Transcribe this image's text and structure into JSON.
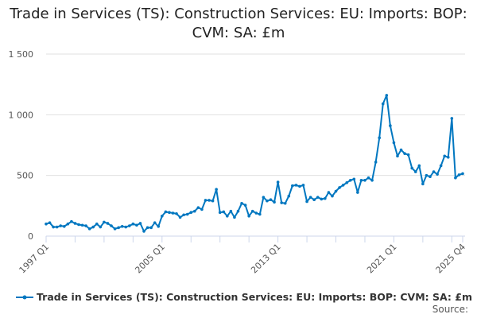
{
  "chart_data": {
    "type": "line",
    "title": "Trade in Services (TS): Construction Services: EU: Imports: BOP: CVM: SA: £m",
    "x_start": "1997 Q1",
    "x_end": "2025 Q4",
    "x_tick_labels": [
      "1997 Q1",
      "2005 Q1",
      "2013 Q1",
      "2021 Q1",
      "2025 Q4"
    ],
    "y_ticks": [
      0,
      500,
      1000,
      1500
    ],
    "y_tick_labels": [
      "0",
      "500",
      "1 000",
      "1 500"
    ],
    "ylim": [
      0,
      1500
    ],
    "grid": true,
    "legend_position": "bottom",
    "series": [
      {
        "name": "Trade in Services (TS): Construction Services: EU: Imports: BOP: CVM: SA: £m",
        "color": "#0077c0",
        "values": [
          100,
          110,
          75,
          75,
          85,
          80,
          100,
          120,
          105,
          95,
          90,
          85,
          60,
          75,
          100,
          75,
          115,
          105,
          85,
          60,
          70,
          80,
          75,
          85,
          100,
          90,
          105,
          40,
          70,
          70,
          110,
          80,
          165,
          200,
          195,
          190,
          185,
          155,
          175,
          180,
          195,
          205,
          235,
          220,
          295,
          295,
          290,
          385,
          195,
          200,
          165,
          205,
          155,
          205,
          270,
          255,
          165,
          205,
          190,
          180,
          320,
          290,
          300,
          280,
          445,
          275,
          270,
          330,
          415,
          420,
          410,
          420,
          285,
          320,
          300,
          320,
          305,
          310,
          360,
          330,
          370,
          400,
          420,
          440,
          460,
          470,
          360,
          460,
          460,
          480,
          460,
          610,
          810,
          1090,
          1160,
          910,
          770,
          660,
          710,
          680,
          670,
          560,
          530,
          580,
          430,
          500,
          490,
          530,
          510,
          580,
          660,
          650,
          970,
          480,
          505,
          515
        ]
      }
    ]
  },
  "source_label": "Source:"
}
